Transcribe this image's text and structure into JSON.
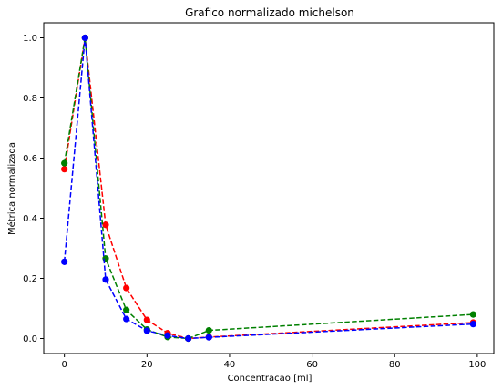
{
  "chart_data": {
    "type": "line",
    "title": "Grafico normalizado michelson",
    "xlabel": "Concentracao [ml]",
    "ylabel": "Métrica normalizada",
    "xlim": [
      -5,
      104
    ],
    "ylim": [
      -0.05,
      1.05
    ],
    "xticks": [
      0,
      20,
      40,
      60,
      80,
      100
    ],
    "yticks": [
      0.0,
      0.2,
      0.4,
      0.6,
      0.8,
      1.0
    ],
    "grid": false,
    "line_style": "dashed",
    "marker": "circle",
    "series": [
      {
        "color": "#ff0000",
        "x": [
          0,
          5,
          10,
          15,
          20,
          25,
          30,
          35,
          99
        ],
        "y": [
          0.563,
          1.0,
          0.378,
          0.168,
          0.062,
          0.018,
          0.0,
          0.005,
          0.053
        ]
      },
      {
        "color": "#008000",
        "x": [
          0,
          5,
          10,
          15,
          20,
          25,
          30,
          35,
          99
        ],
        "y": [
          0.583,
          1.0,
          0.266,
          0.095,
          0.03,
          0.005,
          0.0,
          0.027,
          0.08
        ]
      },
      {
        "color": "#0000ff",
        "x": [
          0,
          5,
          10,
          15,
          20,
          25,
          30,
          35,
          99
        ],
        "y": [
          0.255,
          1.0,
          0.196,
          0.065,
          0.026,
          0.01,
          0.0,
          0.004,
          0.048
        ]
      }
    ]
  }
}
